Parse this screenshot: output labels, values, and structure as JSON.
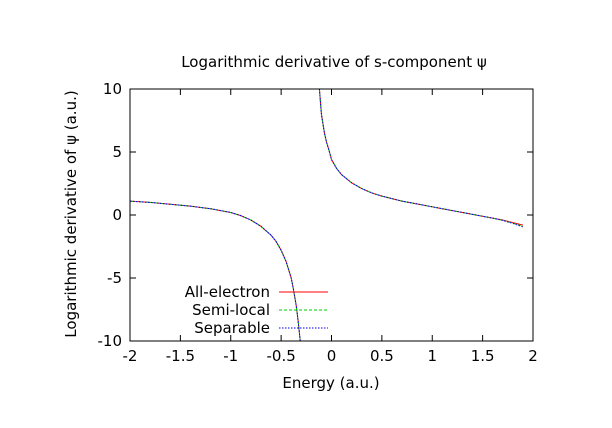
{
  "chart_data": {
    "type": "line",
    "title": "Logarithmic derivative of s-component ψ",
    "xlabel": "Energy (a.u.)",
    "ylabel": "Logarithmic derivative of ψ (a.u.)",
    "xlim": [
      -2,
      2
    ],
    "ylim": [
      -10,
      10
    ],
    "x_ticks": [
      -2,
      -1.5,
      -1,
      -0.5,
      0,
      0.5,
      1,
      1.5,
      2
    ],
    "x_tick_labels": [
      "-2",
      "-1.5",
      "-1",
      "-0.5",
      "0",
      "0.5",
      "1",
      "1.5",
      "2"
    ],
    "y_ticks": [
      -10,
      -5,
      0,
      5,
      10
    ],
    "y_tick_labels": [
      "-10",
      "-5",
      "0",
      "5",
      "10"
    ],
    "grid": false,
    "legend_position": "bottom-left",
    "series": [
      {
        "name": "All-electron",
        "color": "#ff0000",
        "dash": "solid",
        "segments": [
          [
            [
              -2.0,
              1.1
            ],
            [
              -1.8,
              1.0
            ],
            [
              -1.6,
              0.85
            ],
            [
              -1.4,
              0.7
            ],
            [
              -1.2,
              0.5
            ],
            [
              -1.0,
              0.2
            ],
            [
              -0.9,
              -0.05
            ],
            [
              -0.8,
              -0.4
            ],
            [
              -0.7,
              -0.9
            ],
            [
              -0.6,
              -1.6
            ],
            [
              -0.55,
              -2.1
            ],
            [
              -0.5,
              -2.8
            ],
            [
              -0.45,
              -3.7
            ],
            [
              -0.4,
              -5.0
            ],
            [
              -0.38,
              -5.8
            ],
            [
              -0.35,
              -7.2
            ],
            [
              -0.33,
              -8.5
            ],
            [
              -0.31,
              -10.0
            ]
          ],
          [
            [
              -0.12,
              10.0
            ],
            [
              -0.1,
              8.0
            ],
            [
              -0.07,
              6.5
            ],
            [
              -0.05,
              5.8
            ],
            [
              -0.02,
              5.0
            ],
            [
              0.0,
              4.4
            ],
            [
              0.05,
              3.7
            ],
            [
              0.1,
              3.2
            ],
            [
              0.2,
              2.55
            ],
            [
              0.3,
              2.1
            ],
            [
              0.4,
              1.75
            ],
            [
              0.5,
              1.5
            ],
            [
              0.6,
              1.3
            ],
            [
              0.7,
              1.1
            ],
            [
              0.8,
              0.95
            ],
            [
              0.9,
              0.8
            ],
            [
              1.0,
              0.65
            ],
            [
              1.1,
              0.5
            ],
            [
              1.2,
              0.35
            ],
            [
              1.3,
              0.2
            ],
            [
              1.4,
              0.05
            ],
            [
              1.5,
              -0.1
            ],
            [
              1.6,
              -0.25
            ],
            [
              1.7,
              -0.4
            ],
            [
              1.8,
              -0.6
            ],
            [
              1.9,
              -0.8
            ]
          ]
        ]
      },
      {
        "name": "Semi-local",
        "color": "#00cc00",
        "dash": "dashed",
        "segments": [
          [
            [
              -2.0,
              1.1
            ],
            [
              -1.8,
              1.0
            ],
            [
              -1.6,
              0.85
            ],
            [
              -1.4,
              0.7
            ],
            [
              -1.2,
              0.5
            ],
            [
              -1.0,
              0.2
            ],
            [
              -0.9,
              -0.05
            ],
            [
              -0.8,
              -0.4
            ],
            [
              -0.7,
              -0.9
            ],
            [
              -0.6,
              -1.6
            ],
            [
              -0.55,
              -2.1
            ],
            [
              -0.5,
              -2.8
            ],
            [
              -0.45,
              -3.7
            ],
            [
              -0.4,
              -5.0
            ],
            [
              -0.38,
              -5.8
            ],
            [
              -0.35,
              -7.2
            ],
            [
              -0.33,
              -8.5
            ],
            [
              -0.31,
              -10.0
            ]
          ],
          [
            [
              -0.12,
              10.0
            ],
            [
              -0.1,
              8.0
            ],
            [
              -0.07,
              6.5
            ],
            [
              -0.05,
              5.8
            ],
            [
              -0.02,
              5.0
            ],
            [
              0.0,
              4.4
            ],
            [
              0.05,
              3.7
            ],
            [
              0.1,
              3.2
            ],
            [
              0.2,
              2.55
            ],
            [
              0.3,
              2.1
            ],
            [
              0.4,
              1.75
            ],
            [
              0.5,
              1.5
            ],
            [
              0.6,
              1.3
            ],
            [
              0.7,
              1.1
            ],
            [
              0.8,
              0.95
            ],
            [
              0.9,
              0.8
            ],
            [
              1.0,
              0.65
            ],
            [
              1.1,
              0.5
            ],
            [
              1.2,
              0.35
            ],
            [
              1.3,
              0.2
            ],
            [
              1.4,
              0.05
            ],
            [
              1.5,
              -0.1
            ],
            [
              1.6,
              -0.25
            ],
            [
              1.7,
              -0.42
            ],
            [
              1.8,
              -0.65
            ],
            [
              1.9,
              -0.9
            ]
          ]
        ]
      },
      {
        "name": "Separable",
        "color": "#0000ff",
        "dash": "dotted",
        "segments": [
          [
            [
              -2.0,
              1.1
            ],
            [
              -1.8,
              1.0
            ],
            [
              -1.6,
              0.85
            ],
            [
              -1.4,
              0.7
            ],
            [
              -1.2,
              0.5
            ],
            [
              -1.0,
              0.2
            ],
            [
              -0.9,
              -0.05
            ],
            [
              -0.8,
              -0.4
            ],
            [
              -0.7,
              -0.9
            ],
            [
              -0.6,
              -1.6
            ],
            [
              -0.55,
              -2.1
            ],
            [
              -0.5,
              -2.8
            ],
            [
              -0.45,
              -3.7
            ],
            [
              -0.4,
              -5.0
            ],
            [
              -0.38,
              -5.8
            ],
            [
              -0.35,
              -7.2
            ],
            [
              -0.33,
              -8.5
            ],
            [
              -0.31,
              -10.0
            ]
          ],
          [
            [
              -0.12,
              10.0
            ],
            [
              -0.1,
              8.0
            ],
            [
              -0.07,
              6.5
            ],
            [
              -0.05,
              5.8
            ],
            [
              -0.02,
              5.0
            ],
            [
              0.0,
              4.4
            ],
            [
              0.05,
              3.7
            ],
            [
              0.1,
              3.2
            ],
            [
              0.2,
              2.55
            ],
            [
              0.3,
              2.1
            ],
            [
              0.4,
              1.75
            ],
            [
              0.5,
              1.5
            ],
            [
              0.6,
              1.3
            ],
            [
              0.7,
              1.1
            ],
            [
              0.8,
              0.95
            ],
            [
              0.9,
              0.8
            ],
            [
              1.0,
              0.65
            ],
            [
              1.1,
              0.5
            ],
            [
              1.2,
              0.35
            ],
            [
              1.3,
              0.2
            ],
            [
              1.4,
              0.05
            ],
            [
              1.5,
              -0.1
            ],
            [
              1.6,
              -0.25
            ],
            [
              1.7,
              -0.43
            ],
            [
              1.8,
              -0.67
            ],
            [
              1.9,
              -0.95
            ]
          ]
        ]
      }
    ]
  }
}
